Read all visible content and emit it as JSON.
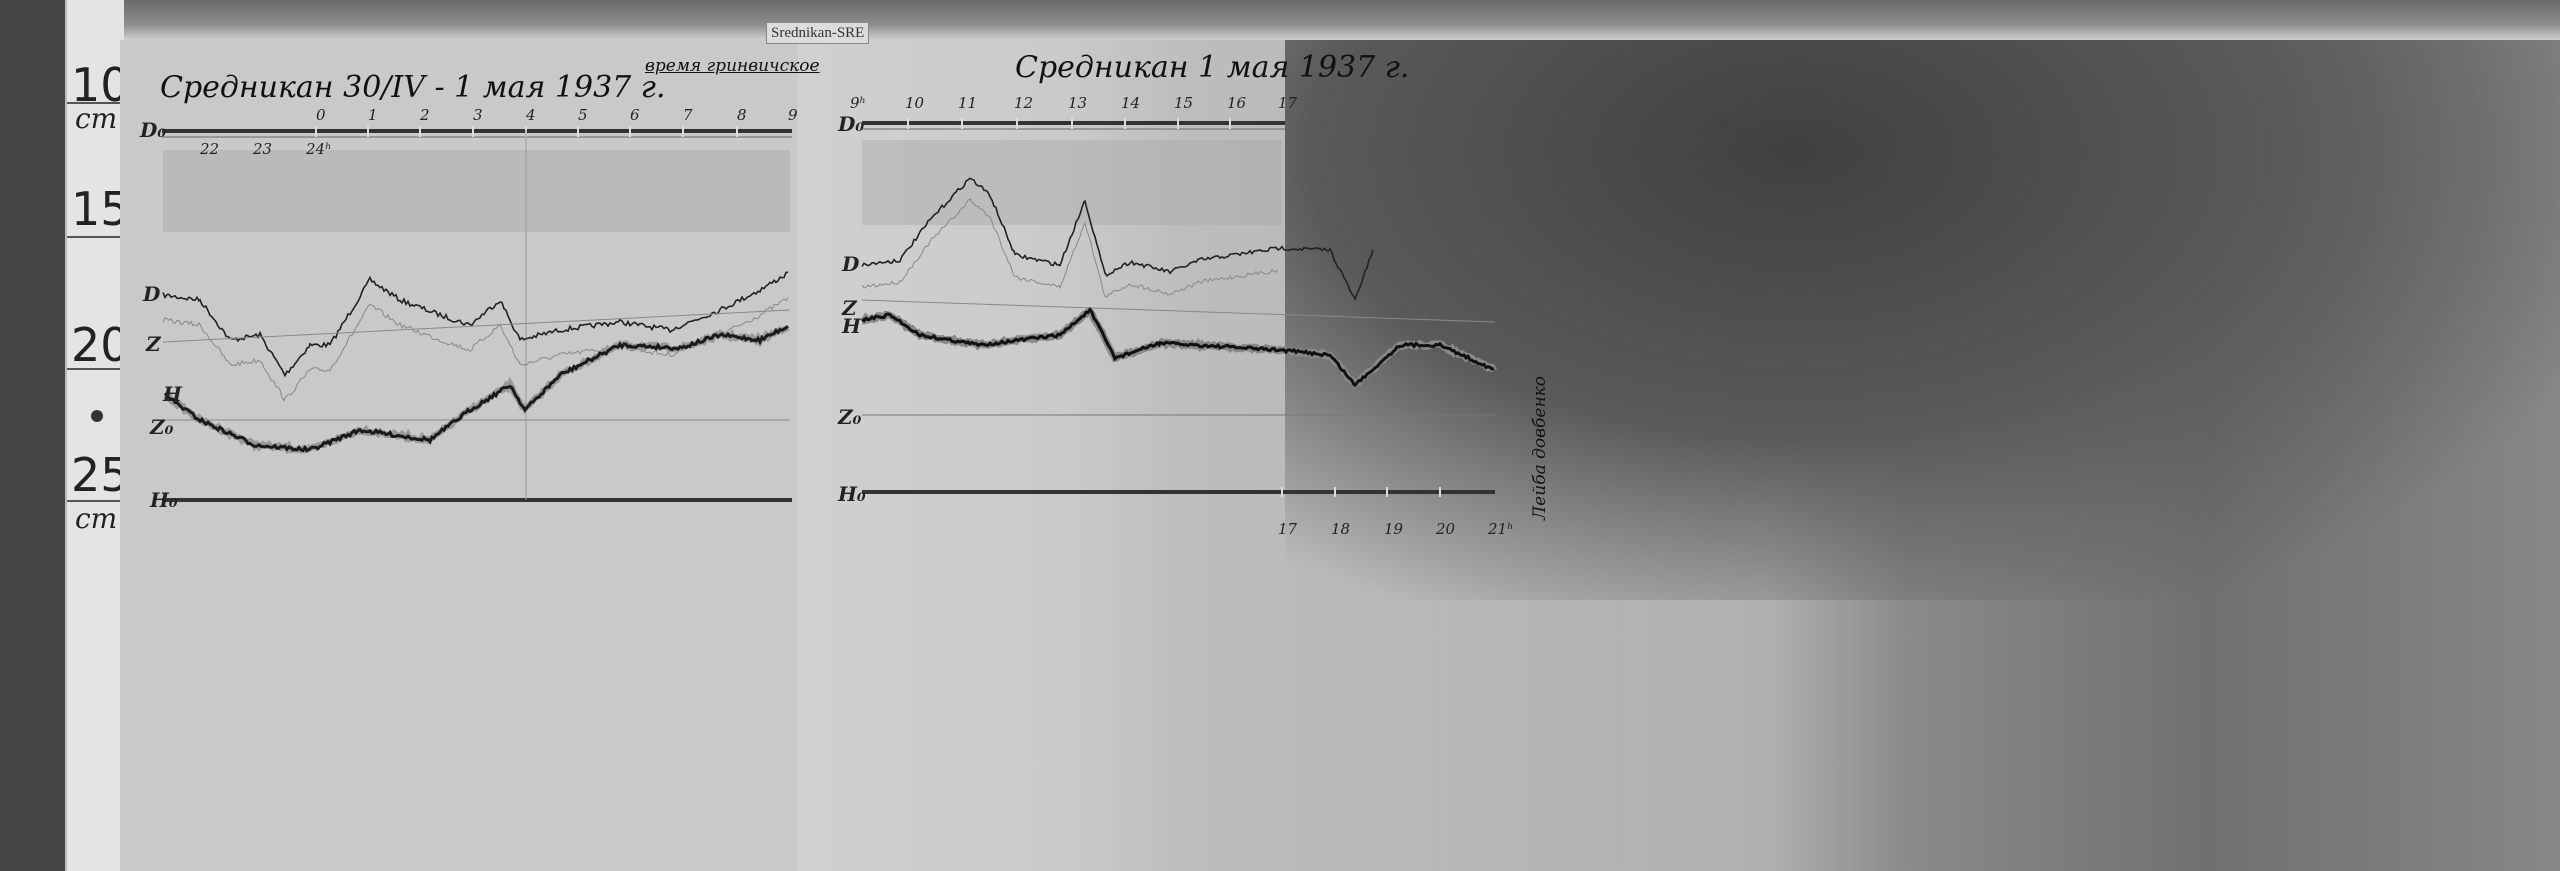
{
  "label_tag": "Srednikan-SRE",
  "ruler": {
    "marks": [
      "10",
      "15",
      "20",
      "25"
    ],
    "unit_top": "cm",
    "unit_bottom": "cm"
  },
  "left_sheet": {
    "title": "Средникан 30/IV - 1 мая 1937 г.",
    "note": "время гринвичское",
    "top_ticks": [
      "0",
      "1",
      "2",
      "3",
      "4",
      "5",
      "6",
      "7",
      "8",
      "9"
    ],
    "bottom_ticks": [
      "22",
      "23",
      "24ʰ"
    ],
    "axis_labels": {
      "D0": "D₀",
      "D": "D",
      "Z": "Z",
      "H": "H",
      "Z0": "Z₀",
      "H0": "H₀"
    }
  },
  "right_sheet": {
    "title": "Средникан 1 мая 1937 г.",
    "top_ticks": [
      "9ʰ",
      "10",
      "11",
      "12",
      "13",
      "14",
      "15",
      "16",
      "17"
    ],
    "bottom_ticks": [
      "17",
      "18",
      "19",
      "20",
      "21ʰ"
    ],
    "axis_labels": {
      "D0": "D₀",
      "D": "D",
      "Z": "Z",
      "H": "H",
      "Z0": "Z₀",
      "H0": "H₀"
    },
    "signature": "Лейба довбенко"
  }
}
